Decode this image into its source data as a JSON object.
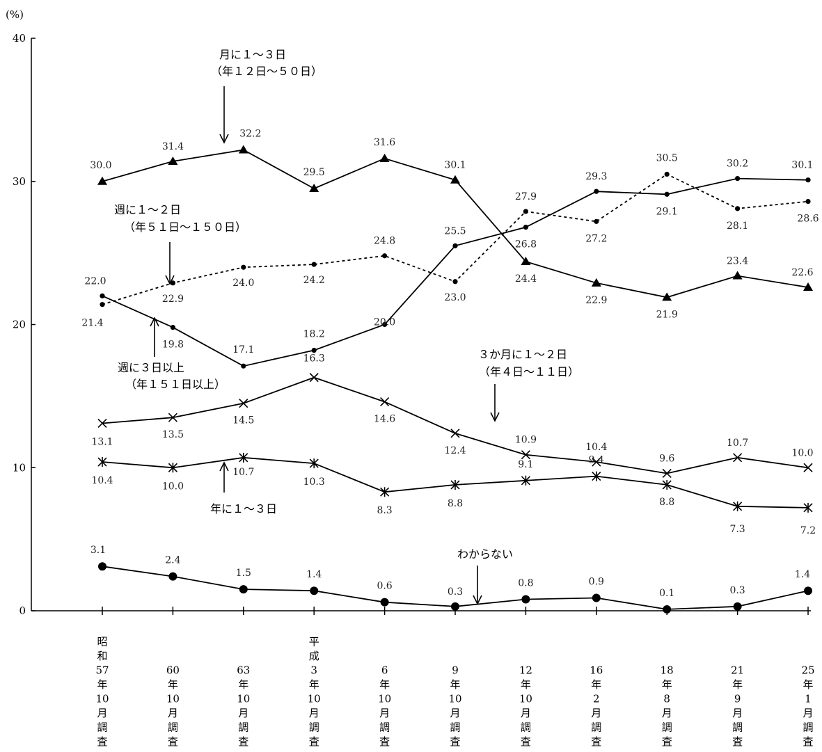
{
  "chart_data": {
    "type": "line",
    "y_unit": "(%)",
    "ylim": [
      0,
      40
    ],
    "y_ticks": [
      "0",
      "10",
      "20",
      "30",
      "40"
    ],
    "grid": false,
    "categories": [
      "昭和57年10月調査",
      "60年10月調査",
      "63年10月調査",
      "平成3年10月調査",
      "6年10月調査",
      "9年10月調査",
      "12年10月調査",
      "16年2月調査",
      "18年8月調査",
      "21年9月調査",
      "25年1月調査"
    ],
    "category_labels": [
      [
        "昭",
        "和",
        "57",
        "年",
        "10",
        "月",
        "調",
        "査"
      ],
      [
        "60",
        "年",
        "10",
        "月",
        "調",
        "査"
      ],
      [
        "63",
        "年",
        "10",
        "月",
        "調",
        "査"
      ],
      [
        "平",
        "成",
        "3",
        "年",
        "10",
        "月",
        "調",
        "査"
      ],
      [
        "6",
        "年",
        "10",
        "月",
        "調",
        "査"
      ],
      [
        "9",
        "年",
        "10",
        "月",
        "調",
        "査"
      ],
      [
        "12",
        "年",
        "10",
        "月",
        "調",
        "査"
      ],
      [
        "16",
        "年",
        "2",
        "月",
        "調",
        "査"
      ],
      [
        "18",
        "年",
        "8",
        "月",
        "調",
        "査"
      ],
      [
        "21",
        "年",
        "9",
        "月",
        "調",
        "査"
      ],
      [
        "25",
        "年",
        "1",
        "月",
        "調",
        "査"
      ]
    ],
    "series": [
      {
        "name": "月に１～３日（年１２日～５０日）",
        "name_lines": [
          "月に１～３日",
          "（年１２日～５０日）"
        ],
        "marker": "triangle",
        "dash": false,
        "values": [
          30.0,
          31.4,
          32.2,
          29.5,
          31.6,
          30.1,
          24.4,
          22.9,
          21.9,
          23.4,
          22.6
        ],
        "labels": [
          "30.0",
          "31.4",
          "32.2",
          "29.5",
          "31.6",
          "30.1",
          "24.4",
          "22.9",
          "21.9",
          "23.4",
          "22.6"
        ]
      },
      {
        "name": "週に１～２日（年５１日～１５０日）",
        "name_lines": [
          "週に１～２日",
          "（年５１日～１５０日）"
        ],
        "marker": "small-dot",
        "dash": true,
        "values": [
          21.4,
          22.9,
          24.0,
          24.2,
          24.8,
          23.0,
          27.9,
          27.2,
          30.5,
          28.1,
          28.6
        ],
        "labels": [
          "21.4",
          "22.9",
          "24.0",
          "24.2",
          "24.8",
          "23.0",
          "27.9",
          "27.2",
          "30.5",
          "28.1",
          "28.6"
        ]
      },
      {
        "name": "週に３日以上（年１５１日以上）",
        "name_lines": [
          "週に３日以上",
          "（年１５１日以上）"
        ],
        "marker": "small-dot",
        "dash": false,
        "values": [
          22.0,
          19.8,
          17.1,
          18.2,
          20.0,
          25.5,
          26.8,
          29.3,
          29.1,
          30.2,
          30.1
        ],
        "labels": [
          "22.0",
          "19.8",
          "17.1",
          "18.2",
          "20.0",
          "25.5",
          "26.8",
          "29.3",
          "29.1",
          "30.2",
          "30.1"
        ]
      },
      {
        "name": "３か月に１～２日（年４日～１１日）",
        "name_lines": [
          "３か月に１～２日",
          "（年４日～１１日）"
        ],
        "marker": "x",
        "dash": false,
        "values": [
          13.1,
          13.5,
          14.5,
          16.3,
          14.6,
          12.4,
          10.9,
          10.4,
          9.6,
          10.7,
          10.0
        ],
        "labels": [
          "13.1",
          "13.5",
          "14.5",
          "16.3",
          "14.6",
          "12.4",
          "10.9",
          "10.4",
          "9.6",
          "10.7",
          "10.0"
        ]
      },
      {
        "name": "年に１～３日",
        "name_lines": [
          "年に１～３日"
        ],
        "marker": "asterisk",
        "dash": false,
        "values": [
          10.4,
          10.0,
          10.7,
          10.3,
          8.3,
          8.8,
          9.1,
          9.4,
          8.8,
          7.3,
          7.2
        ],
        "labels": [
          "10.4",
          "10.0",
          "10.7",
          "10.3",
          "8.3",
          "8.8",
          "9.1",
          "9.4",
          "8.8",
          "7.3",
          "7.2"
        ]
      },
      {
        "name": "わからない",
        "name_lines": [
          "わからない"
        ],
        "marker": "big-dot",
        "dash": false,
        "values": [
          3.1,
          2.4,
          1.5,
          1.4,
          0.6,
          0.3,
          0.8,
          0.9,
          0.1,
          0.3,
          1.4
        ],
        "labels": [
          "3.1",
          "2.4",
          "1.5",
          "1.4",
          "0.6",
          "0.3",
          "0.8",
          "0.9",
          "0.1",
          "0.3",
          "1.4"
        ]
      }
    ]
  }
}
